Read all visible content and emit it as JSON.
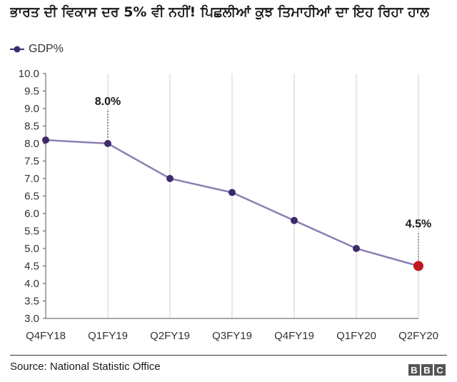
{
  "title": "ਭਾਰਤ ਦੀ ਵਿਕਾਸ ਦਰ 5% ਵੀ ਨਹੀਂ! ਪਿਛਲੀਆਂ ਕੁਝ ਤਿਮਾਹੀਆਂ ਦਾ ਇਹ ਰਿਹਾ ਹਾਲ",
  "source": "Source: National Statistic Office",
  "brand": {
    "letters": [
      "B",
      "B",
      "C"
    ]
  },
  "colors": {
    "line": "#8d7fb3",
    "marker": "#3d2b6b",
    "highlight": "#c0181f",
    "grid": "#d0d0d0",
    "axis": "#555555"
  },
  "chart_data": {
    "type": "line",
    "title": "",
    "xlabel": "",
    "ylabel": "",
    "ylim": [
      3.0,
      10.0
    ],
    "yticks": [
      "3.0",
      "3.5",
      "4.0",
      "4.5",
      "5.0",
      "5.5",
      "6.0",
      "6.5",
      "7.0",
      "7.5",
      "8.0",
      "8.5",
      "9.0",
      "9.5",
      "10.0"
    ],
    "categories": [
      "Q4FY18",
      "Q1FY19",
      "Q2FY19",
      "Q3FY19",
      "Q4FY19",
      "Q1FY20",
      "Q2FY20"
    ],
    "series": [
      {
        "name": "GDP%",
        "values": [
          8.1,
          8.0,
          7.0,
          6.6,
          5.8,
          5.0,
          4.5
        ]
      }
    ],
    "grid": "vertical",
    "legend": "top-left",
    "annotations": [
      {
        "category": "Q1FY19",
        "label": "8.0%"
      },
      {
        "category": "Q2FY20",
        "label": "4.5%"
      }
    ]
  }
}
